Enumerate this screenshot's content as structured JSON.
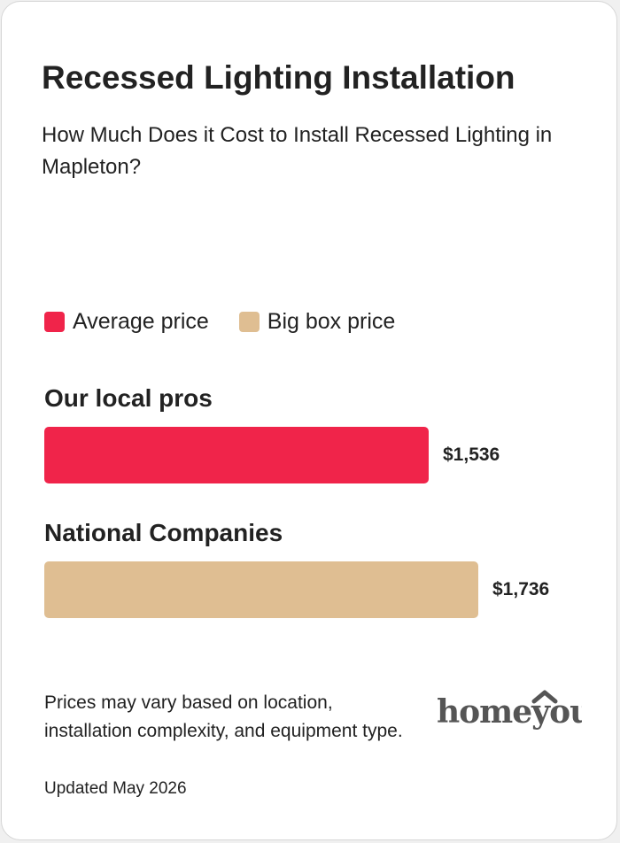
{
  "card": {
    "title": "Recessed Lighting Installation",
    "subtitle": "How Much Does it Cost to Install Recessed Lighting in Mapleton?",
    "footnote": "Prices may vary based on location, installation complexity, and equipment type.",
    "updated": "Updated May 2026",
    "logo_text": "homeyou",
    "logo_color": "#555555"
  },
  "chart_data": {
    "type": "bar",
    "orientation": "horizontal",
    "legend_placement": "top-left",
    "legend": [
      {
        "label": "Average price",
        "color": "#f0244a"
      },
      {
        "label": "Big box price",
        "color": "#dfbe92"
      }
    ],
    "categories": [
      "Our local pros",
      "National Companies"
    ],
    "values": [
      1536,
      1736
    ],
    "value_labels": [
      "$1,536",
      "$1,736"
    ],
    "colors": [
      "#f0244a",
      "#dfbe92"
    ],
    "xlim": [
      0,
      1736
    ],
    "grid": false
  }
}
